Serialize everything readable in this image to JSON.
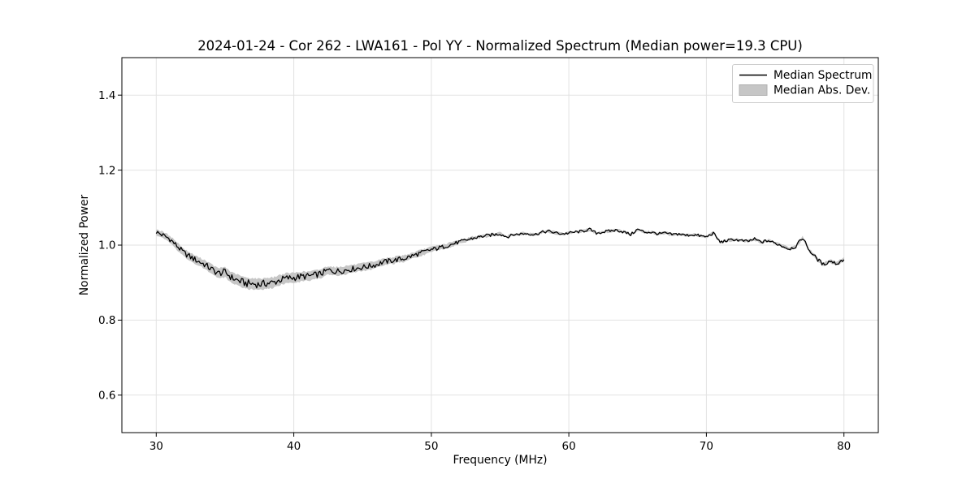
{
  "figure": {
    "background": "#ffffff"
  },
  "chart_data": {
    "type": "line",
    "title": "2024-01-24 - Cor 262 - LWA161 - Pol YY - Normalized Spectrum (Median power=19.3 CPU)",
    "xlabel": "Frequency (MHz)",
    "ylabel": "Normalized Power",
    "xlim": [
      27.5,
      82.5
    ],
    "ylim": [
      0.5,
      1.5
    ],
    "xticks": [
      30,
      40,
      50,
      60,
      70,
      80
    ],
    "xtick_labels": [
      "30",
      "40",
      "50",
      "60",
      "70",
      "80"
    ],
    "yticks": [
      0.6,
      0.8,
      1.0,
      1.2,
      1.4
    ],
    "ytick_labels": [
      "0.6",
      "0.8",
      "1.0",
      "1.2",
      "1.4"
    ],
    "grid": true,
    "legend": {
      "position": "upper right",
      "entries": [
        {
          "label": "Median Spectrum",
          "type": "line"
        },
        {
          "label": "Median Abs. Dev.",
          "type": "patch"
        }
      ]
    },
    "colors": {
      "line": "#000000",
      "band": "#c6c6c6",
      "band_edge": "#b0b0b0",
      "grid": "#e2e2e2",
      "spine": "#000000",
      "legend_edge": "#cccccc",
      "background": "#ffffff"
    },
    "x": [
      30.0,
      30.5,
      31.0,
      31.5,
      32.0,
      32.5,
      33.0,
      33.5,
      34.0,
      34.5,
      35.0,
      35.5,
      36.0,
      36.5,
      37.0,
      37.5,
      38.0,
      38.5,
      39.0,
      39.5,
      40.0,
      40.5,
      41.0,
      41.5,
      42.0,
      42.5,
      43.0,
      43.5,
      44.0,
      44.5,
      45.0,
      45.5,
      46.0,
      46.5,
      47.0,
      47.5,
      48.0,
      48.5,
      49.0,
      49.5,
      50.0,
      50.5,
      51.0,
      51.5,
      52.0,
      52.5,
      53.0,
      53.5,
      54.0,
      54.5,
      55.0,
      55.5,
      56.0,
      56.5,
      57.0,
      57.5,
      58.0,
      58.5,
      59.0,
      59.5,
      60.0,
      60.5,
      61.0,
      61.5,
      62.0,
      62.5,
      63.0,
      63.5,
      64.0,
      64.5,
      65.0,
      65.5,
      66.0,
      66.5,
      67.0,
      67.5,
      68.0,
      68.5,
      69.0,
      69.5,
      70.0,
      70.5,
      71.0,
      71.5,
      72.0,
      72.5,
      73.0,
      73.5,
      74.0,
      74.5,
      75.0,
      75.5,
      76.0,
      76.5,
      77.0,
      77.5,
      78.0,
      78.5,
      79.0,
      79.5,
      80.0
    ],
    "series": [
      {
        "name": "Median Spectrum",
        "y": [
          1.035,
          1.026,
          1.016,
          0.998,
          0.98,
          0.968,
          0.958,
          0.949,
          0.936,
          0.925,
          0.928,
          0.913,
          0.905,
          0.898,
          0.897,
          0.895,
          0.898,
          0.9,
          0.907,
          0.912,
          0.913,
          0.916,
          0.917,
          0.92,
          0.924,
          0.933,
          0.93,
          0.932,
          0.935,
          0.938,
          0.941,
          0.944,
          0.948,
          0.955,
          0.958,
          0.961,
          0.964,
          0.97,
          0.976,
          0.982,
          0.988,
          0.992,
          0.997,
          1.002,
          1.008,
          1.013,
          1.018,
          1.022,
          1.025,
          1.028,
          1.03,
          1.022,
          1.028,
          1.03,
          1.031,
          1.028,
          1.034,
          1.037,
          1.033,
          1.03,
          1.032,
          1.035,
          1.037,
          1.042,
          1.032,
          1.035,
          1.038,
          1.04,
          1.035,
          1.028,
          1.042,
          1.035,
          1.034,
          1.03,
          1.032,
          1.028,
          1.03,
          1.026,
          1.028,
          1.025,
          1.022,
          1.032,
          1.008,
          1.012,
          1.015,
          1.012,
          1.01,
          1.016,
          1.008,
          1.012,
          1.005,
          0.998,
          0.99,
          0.996,
          1.02,
          0.985,
          0.965,
          0.948,
          0.958,
          0.95,
          0.963
        ]
      },
      {
        "name": "Median Abs. Dev.",
        "mode": "band_halfwidth",
        "values": [
          0.008,
          0.009,
          0.009,
          0.01,
          0.01,
          0.011,
          0.011,
          0.012,
          0.013,
          0.013,
          0.014,
          0.014,
          0.015,
          0.015,
          0.015,
          0.015,
          0.015,
          0.014,
          0.014,
          0.013,
          0.013,
          0.013,
          0.012,
          0.012,
          0.012,
          0.012,
          0.011,
          0.011,
          0.011,
          0.01,
          0.01,
          0.01,
          0.01,
          0.009,
          0.009,
          0.009,
          0.009,
          0.008,
          0.008,
          0.008,
          0.007,
          0.007,
          0.006,
          0.006,
          0.005,
          0.005,
          0.005,
          0.004,
          0.004,
          0.004,
          0.004,
          0.003,
          0.003,
          0.003,
          0.003,
          0.003,
          0.003,
          0.003,
          0.003,
          0.003,
          0.003,
          0.003,
          0.003,
          0.003,
          0.003,
          0.003,
          0.003,
          0.003,
          0.003,
          0.003,
          0.003,
          0.003,
          0.003,
          0.003,
          0.003,
          0.003,
          0.003,
          0.003,
          0.003,
          0.003,
          0.003,
          0.003,
          0.003,
          0.003,
          0.003,
          0.003,
          0.003,
          0.003,
          0.003,
          0.003,
          0.003,
          0.004,
          0.004,
          0.004,
          0.004,
          0.004,
          0.005,
          0.005,
          0.005,
          0.005,
          0.005
        ]
      }
    ]
  }
}
